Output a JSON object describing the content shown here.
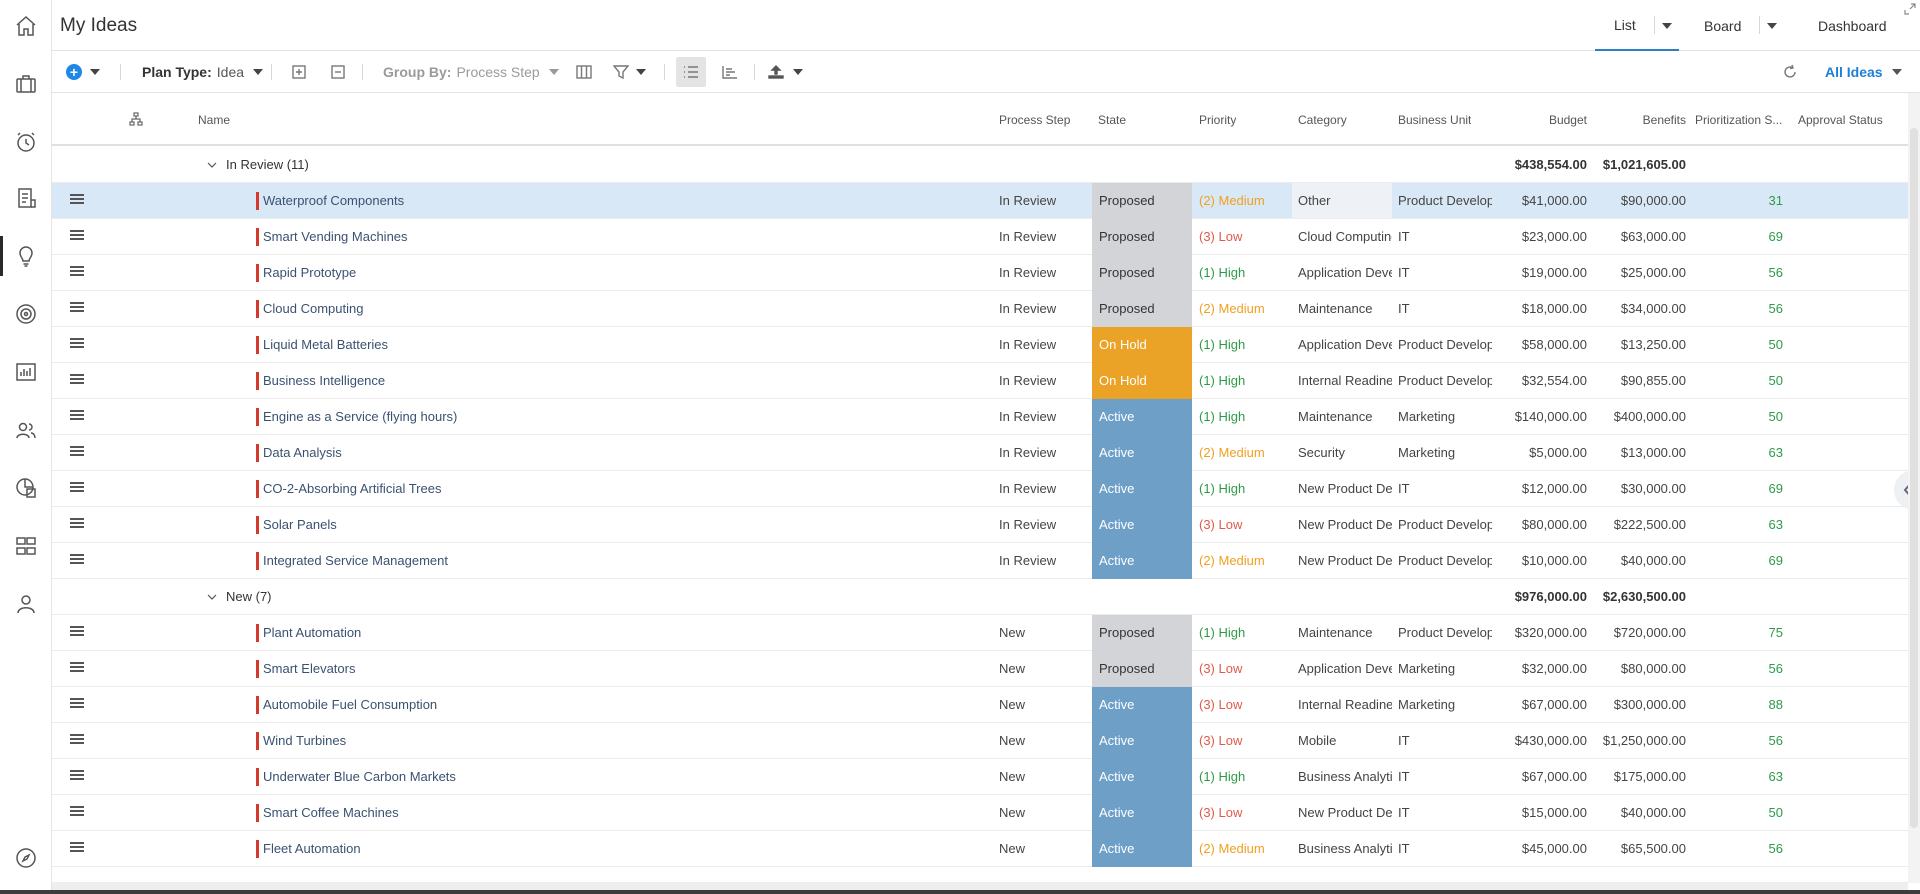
{
  "header": {
    "title": "My Ideas",
    "tabs": [
      {
        "label": "List",
        "active": true
      },
      {
        "label": "Board",
        "active": false
      },
      {
        "label": "Dashboard",
        "active": false
      }
    ]
  },
  "toolbar": {
    "plan_type_label": "Plan Type:",
    "plan_type_value": "Idea",
    "group_by_label": "Group By:",
    "group_by_value": "Process Step",
    "view_filter": "All Ideas"
  },
  "rail": {
    "icons": [
      "home-icon",
      "briefcase-icon",
      "timesheet-icon",
      "checklist-icon",
      "idea-icon",
      "target-icon",
      "chart-icon",
      "people-icon",
      "portfolio-icon",
      "hierarchy-icon",
      "user-icon",
      "compass-icon"
    ]
  },
  "columns": {
    "name": "Name",
    "process_step": "Process Step",
    "state": "State",
    "priority": "Priority",
    "category": "Category",
    "business_unit": "Business Unit",
    "budget": "Budget",
    "benefits": "Benefits",
    "prioritization": "Prioritization S...",
    "approval": "Approval Status"
  },
  "groups": [
    {
      "label": "In Review (11)",
      "budget": "$438,554.00",
      "benefits": "$1,021,605.00",
      "rows": [
        {
          "name": "Waterproof Components",
          "step": "In Review",
          "state": "Proposed",
          "priority": "(2) Medium",
          "category": "Other",
          "unit": "Product Development",
          "budget": "$41,000.00",
          "benefits": "$90,000.00",
          "score": "31"
        },
        {
          "name": "Smart Vending Machines",
          "step": "In Review",
          "state": "Proposed",
          "priority": "(3) Low",
          "category": "Cloud Computing",
          "unit": "IT",
          "budget": "$23,000.00",
          "benefits": "$63,000.00",
          "score": "69"
        },
        {
          "name": "Rapid Prototype",
          "step": "In Review",
          "state": "Proposed",
          "priority": "(1) High",
          "category": "Application Development",
          "unit": "IT",
          "budget": "$19,000.00",
          "benefits": "$25,000.00",
          "score": "56"
        },
        {
          "name": "Cloud Computing",
          "step": "In Review",
          "state": "Proposed",
          "priority": "(2) Medium",
          "category": "Maintenance",
          "unit": "IT",
          "budget": "$18,000.00",
          "benefits": "$34,000.00",
          "score": "56"
        },
        {
          "name": "Liquid Metal Batteries",
          "step": "In Review",
          "state": "On Hold",
          "priority": "(1) High",
          "category": "Application Development",
          "unit": "Product Development",
          "budget": "$58,000.00",
          "benefits": "$13,250.00",
          "score": "50"
        },
        {
          "name": "Business Intelligence",
          "step": "In Review",
          "state": "On Hold",
          "priority": "(1) High",
          "category": "Internal Readiness",
          "unit": "Product Development",
          "budget": "$32,554.00",
          "benefits": "$90,855.00",
          "score": "50"
        },
        {
          "name": "Engine as a Service (flying hours)",
          "step": "In Review",
          "state": "Active",
          "priority": "(1) High",
          "category": "Maintenance",
          "unit": "Marketing",
          "budget": "$140,000.00",
          "benefits": "$400,000.00",
          "score": "50"
        },
        {
          "name": "Data Analysis",
          "step": "In Review",
          "state": "Active",
          "priority": "(2) Medium",
          "category": "Security",
          "unit": "Marketing",
          "budget": "$5,000.00",
          "benefits": "$13,000.00",
          "score": "63"
        },
        {
          "name": "CO-2-Absorbing Artificial Trees",
          "step": "In Review",
          "state": "Active",
          "priority": "(1) High",
          "category": "New Product Development",
          "unit": "IT",
          "budget": "$12,000.00",
          "benefits": "$30,000.00",
          "score": "69"
        },
        {
          "name": "Solar Panels",
          "step": "In Review",
          "state": "Active",
          "priority": "(3) Low",
          "category": "New Product Development",
          "unit": "Product Development",
          "budget": "$80,000.00",
          "benefits": "$222,500.00",
          "score": "63"
        },
        {
          "name": "Integrated Service Management",
          "step": "In Review",
          "state": "Active",
          "priority": "(2) Medium",
          "category": "New Product Development",
          "unit": "Product Development",
          "budget": "$10,000.00",
          "benefits": "$40,000.00",
          "score": "69"
        }
      ]
    },
    {
      "label": "New (7)",
      "budget": "$976,000.00",
      "benefits": "$2,630,500.00",
      "rows": [
        {
          "name": "Plant Automation",
          "step": "New",
          "state": "Proposed",
          "priority": "(1) High",
          "category": "Maintenance",
          "unit": "Product Development",
          "budget": "$320,000.00",
          "benefits": "$720,000.00",
          "score": "75"
        },
        {
          "name": "Smart Elevators",
          "step": "New",
          "state": "Proposed",
          "priority": "(3) Low",
          "category": "Application Development",
          "unit": "Marketing",
          "budget": "$32,000.00",
          "benefits": "$80,000.00",
          "score": "56"
        },
        {
          "name": "Automobile Fuel Consumption",
          "step": "New",
          "state": "Active",
          "priority": "(3) Low",
          "category": "Internal Readiness",
          "unit": "Marketing",
          "budget": "$67,000.00",
          "benefits": "$300,000.00",
          "score": "88"
        },
        {
          "name": "Wind Turbines",
          "step": "New",
          "state": "Active",
          "priority": "(3) Low",
          "category": "Mobile",
          "unit": "IT",
          "budget": "$430,000.00",
          "benefits": "$1,250,000.00",
          "score": "56"
        },
        {
          "name": "Underwater Blue Carbon Markets",
          "step": "New",
          "state": "Active",
          "priority": "(1) High",
          "category": "Business Analytics",
          "unit": "IT",
          "budget": "$67,000.00",
          "benefits": "$175,000.00",
          "score": "63"
        },
        {
          "name": "Smart Coffee Machines",
          "step": "New",
          "state": "Active",
          "priority": "(3) Low",
          "category": "New Product Development",
          "unit": "IT",
          "budget": "$15,000.00",
          "benefits": "$40,000.00",
          "score": "50"
        },
        {
          "name": "Fleet Automation",
          "step": "New",
          "state": "Active",
          "priority": "(2) Medium",
          "category": "Business Analytics",
          "unit": "IT",
          "budget": "$45,000.00",
          "benefits": "$65,500.00",
          "score": "56"
        }
      ]
    }
  ]
}
